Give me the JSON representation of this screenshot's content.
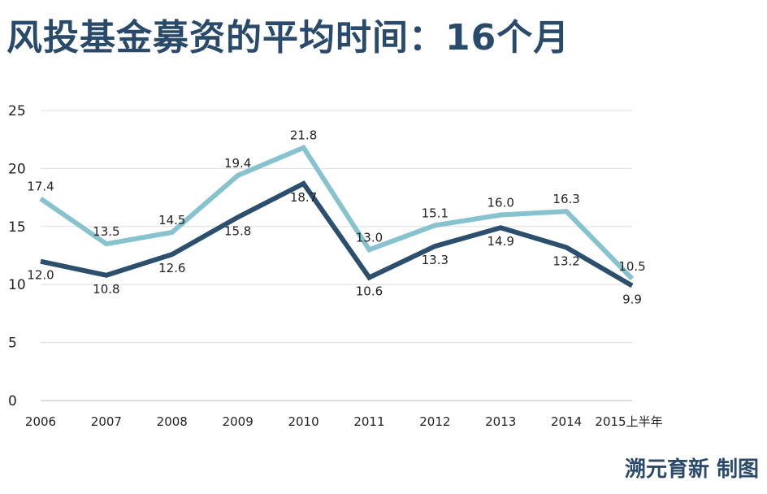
{
  "title": "风投基金募资的平均时间：16个月",
  "credit": "溯元育新 制图",
  "chart_data": {
    "type": "line",
    "title": "风投基金募资的平均时间：16个月",
    "categories": [
      "2006",
      "2007",
      "2008",
      "2009",
      "2010",
      "2011",
      "2012",
      "2013",
      "2014",
      "2015上半年"
    ],
    "series": [
      {
        "color": "#86c3cf",
        "values": [
          17.4,
          13.5,
          14.5,
          19.4,
          21.8,
          13.0,
          15.1,
          16.0,
          16.3,
          10.5
        ]
      },
      {
        "color": "#2c4f6e",
        "values": [
          12.0,
          10.8,
          12.6,
          15.8,
          18.7,
          10.6,
          13.3,
          14.9,
          13.2,
          9.9
        ]
      }
    ],
    "yticks": [
      0,
      5,
      10,
      15,
      20,
      25
    ],
    "ylim": [
      0,
      25
    ],
    "grid": true,
    "legend": "none"
  }
}
